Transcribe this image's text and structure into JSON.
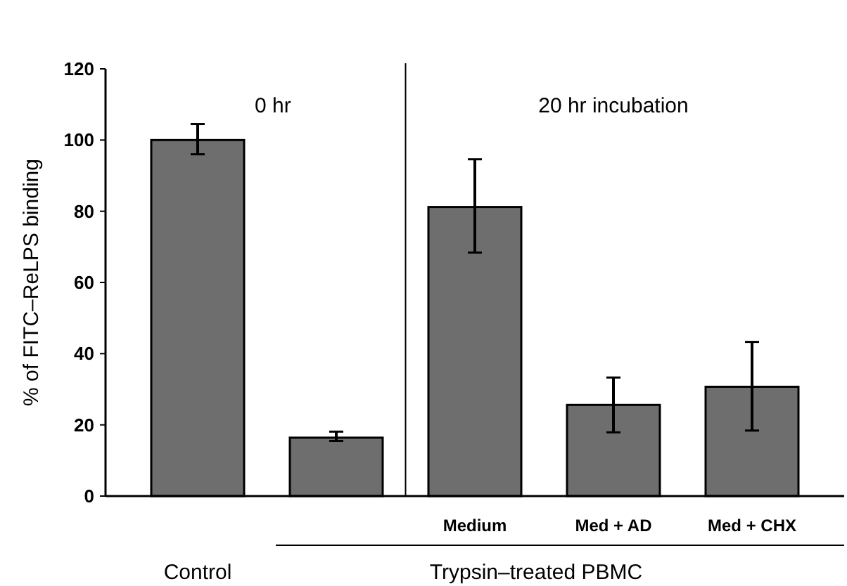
{
  "chart_data": {
    "type": "bar",
    "ylabel": "% of FITC–ReLPS binding",
    "categories": [
      null,
      null,
      "Medium",
      "Med + AD",
      "Med + CHX"
    ],
    "values": [
      100,
      16.4,
      81.2,
      25.6,
      30.7
    ],
    "errors": [
      [
        96,
        104.5
      ],
      [
        15.5,
        18.1
      ],
      [
        68.4,
        94.6
      ],
      [
        17.9,
        33.3
      ],
      [
        18.4,
        43.3
      ]
    ],
    "color": "#6e6e6e",
    "ylim": [
      0,
      120
    ],
    "yticks": [
      0,
      20,
      40,
      60,
      80,
      100,
      120
    ],
    "annotations": [
      "0 hr",
      "20 hr incubation",
      "Control",
      "Trypsin–treated PBMC"
    ]
  }
}
